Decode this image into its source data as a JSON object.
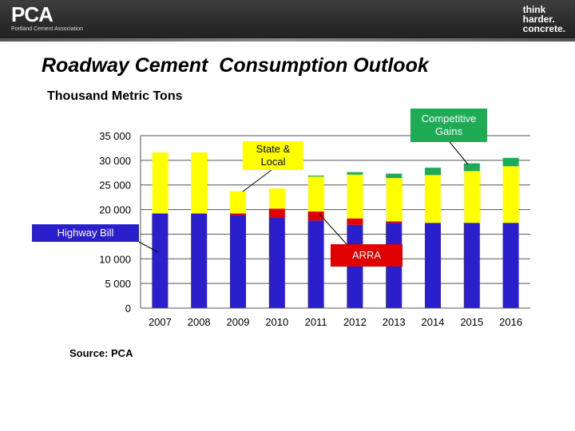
{
  "header": {
    "logo_left": "PCA",
    "logo_left_sub": "Portland Cement Association",
    "logo_right_lines": [
      "think",
      "harder.",
      "concrete."
    ]
  },
  "title": "Roadway Cement  Consumption Outlook",
  "subtitle": "Thousand Metric Tons",
  "source": "Source: PCA",
  "annotations": {
    "competitive_gains": "Competitive Gains",
    "state_local": "State & Local",
    "highway_bill": "Highway Bill",
    "arra": "ARRA"
  },
  "colors": {
    "highway_bill": "#2b1fcc",
    "arra": "#e00000",
    "state_local": "#ffff00",
    "competitive_gains": "#1faa55",
    "callout_competitive": "#1faa55",
    "callout_state": "#ffff00",
    "callout_highway": "#2b1fcc",
    "callout_arra": "#e00000"
  },
  "chart_data": {
    "type": "bar",
    "stacked": true,
    "categories": [
      "2007",
      "2008",
      "2009",
      "2010",
      "2011",
      "2012",
      "2013",
      "2014",
      "2015",
      "2016"
    ],
    "series": [
      {
        "name": "Highway Bill",
        "values": [
          19200,
          19200,
          18900,
          18400,
          17800,
          16900,
          17300,
          17300,
          17300,
          17300
        ]
      },
      {
        "name": "ARRA",
        "values": [
          0,
          0,
          300,
          1800,
          1800,
          1300,
          300,
          0,
          0,
          0
        ]
      },
      {
        "name": "State & Local",
        "values": [
          12400,
          12400,
          4500,
          4100,
          7100,
          8900,
          8800,
          9700,
          10500,
          11500
        ]
      },
      {
        "name": "Competitive Gains",
        "values": [
          0,
          0,
          0,
          0,
          200,
          500,
          900,
          1500,
          1600,
          1700
        ]
      }
    ],
    "ylim": [
      0,
      35000
    ],
    "yticks": [
      0,
      5000,
      10000,
      15000,
      20000,
      25000,
      30000,
      35000
    ],
    "ytick_labels": [
      "0",
      "5 000",
      "10 000",
      "",
      "20 000",
      "25 000",
      "30 000",
      "35 000"
    ],
    "grid": true,
    "legend": "callouts"
  }
}
